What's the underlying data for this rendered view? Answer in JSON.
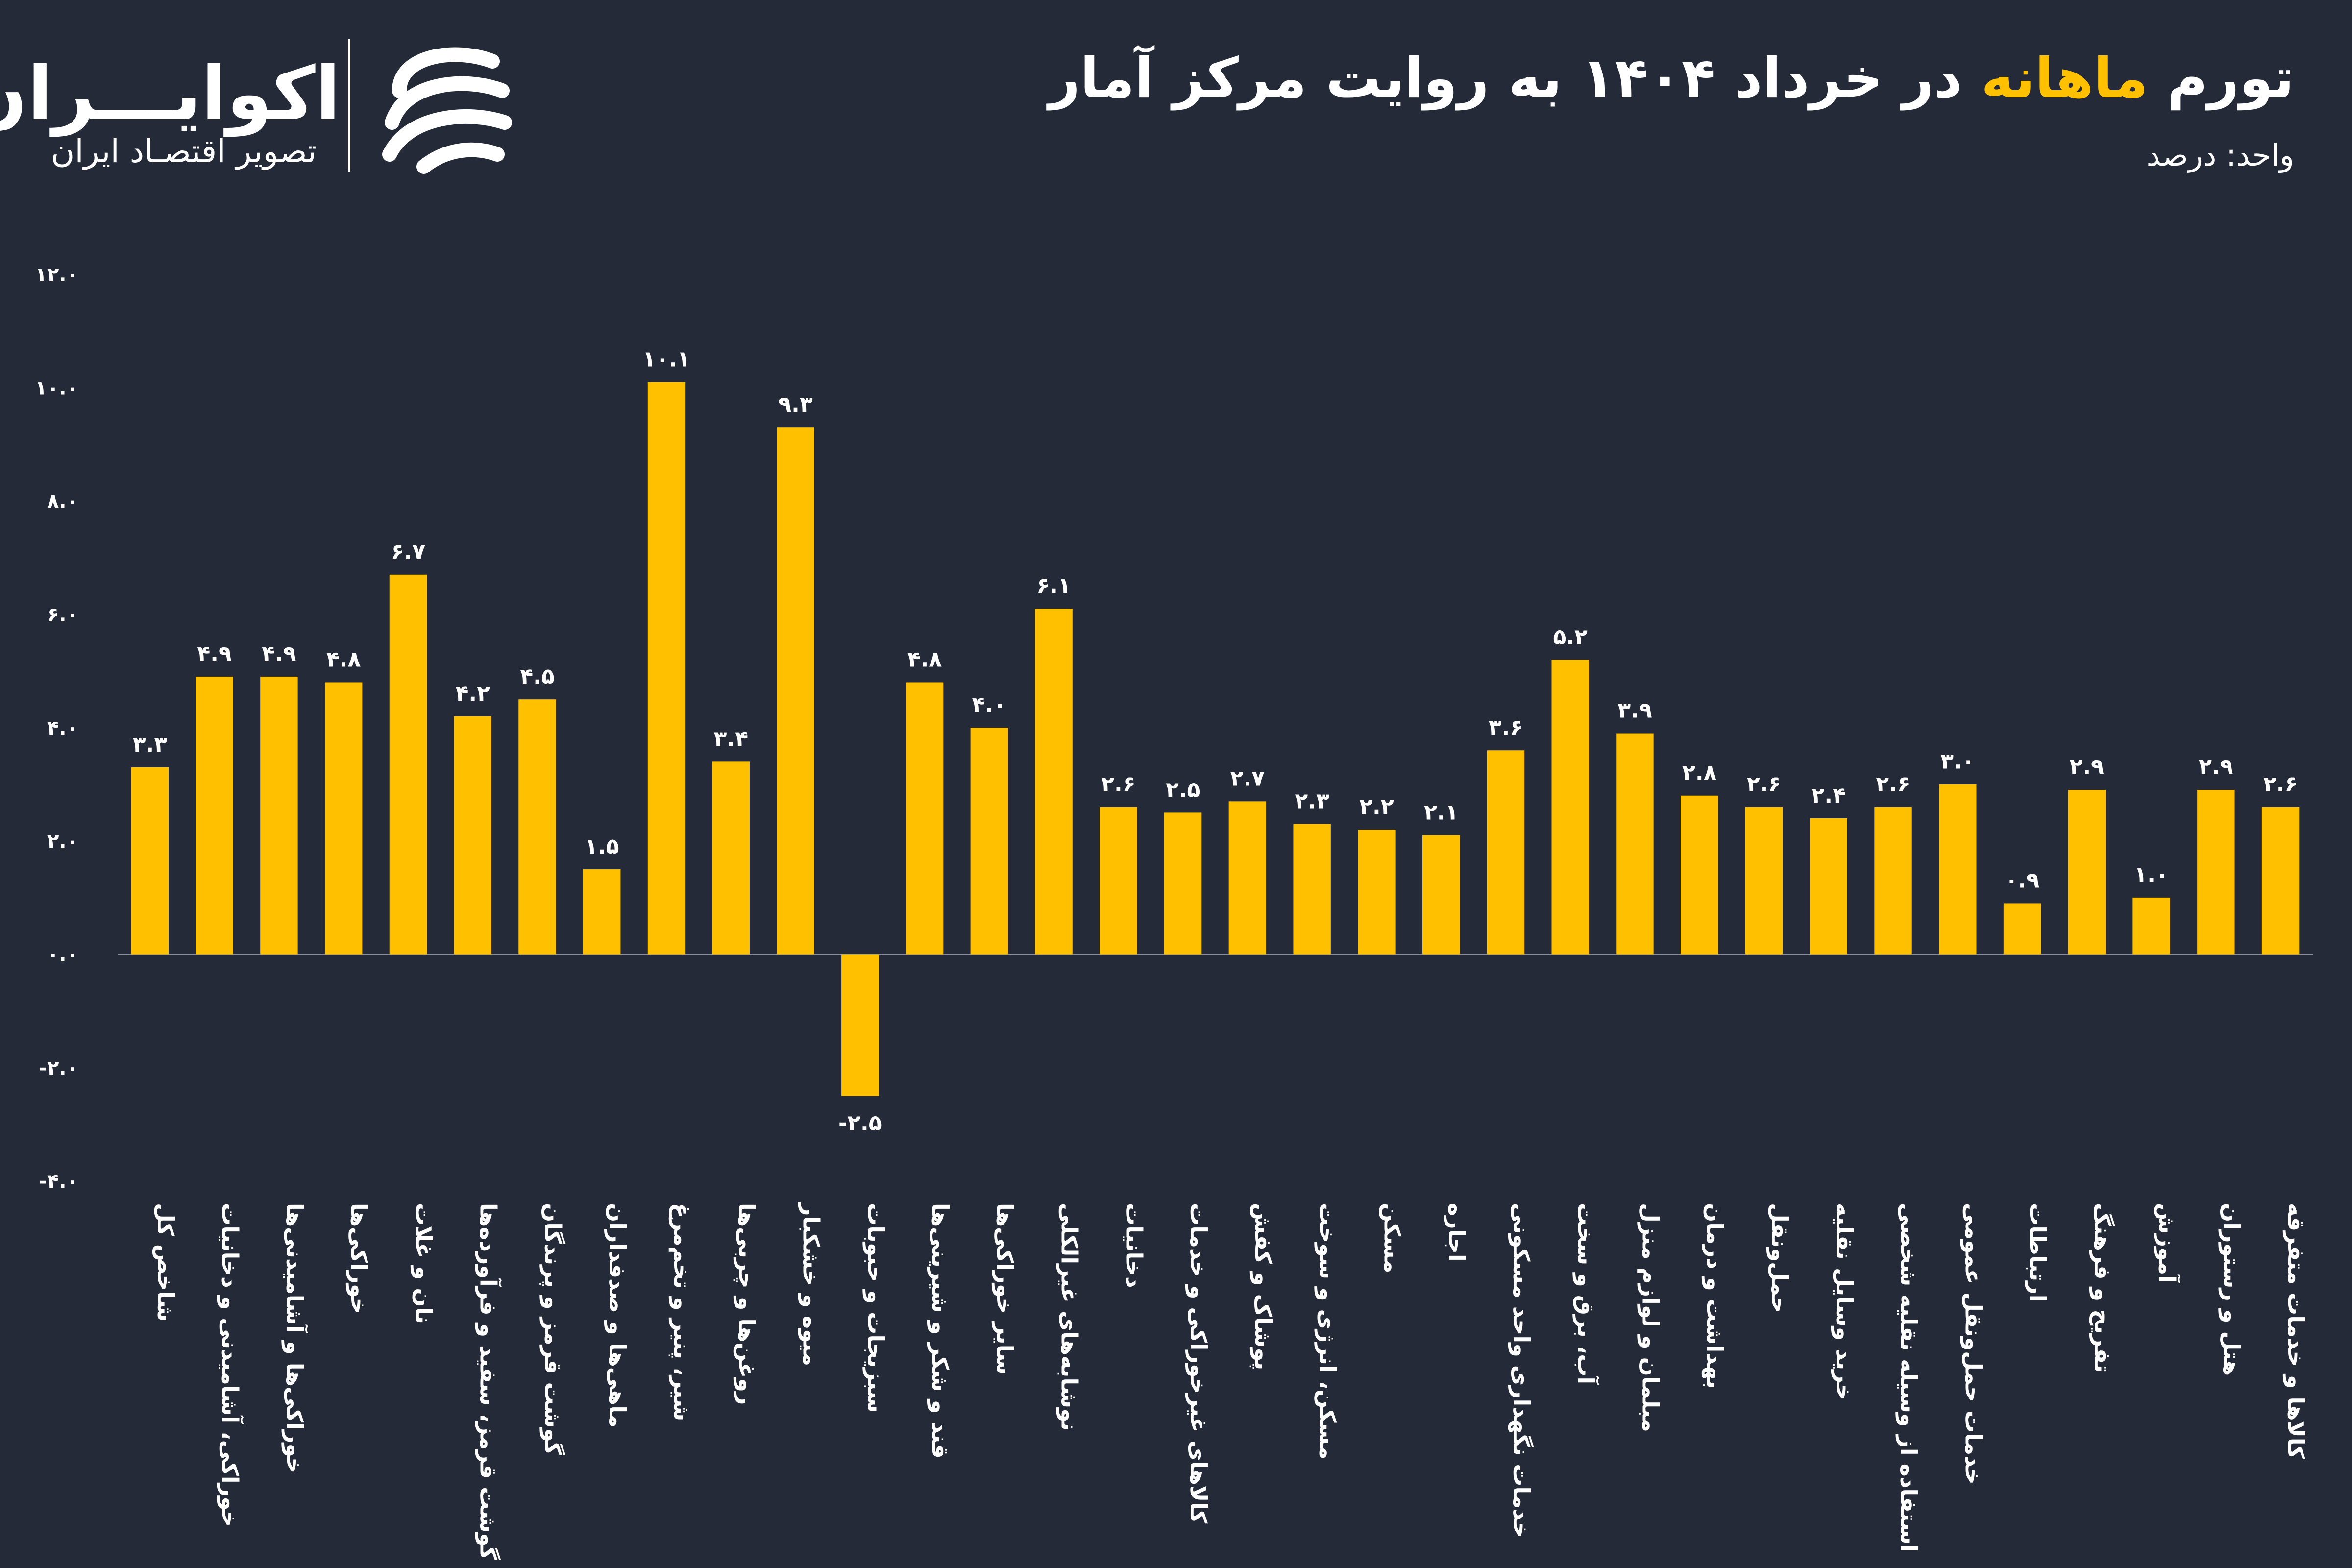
{
  "header": {
    "title_prefix": "تورم",
    "title_highlight": "ماهانه",
    "title_suffix": "در خرداد ۱۴۰۴ به روایت مرکز آمار",
    "unit_label": "واحد: درصد"
  },
  "logo": {
    "name": "اکوایـــران",
    "tagline": "تصویر اقتصـاد ایران"
  },
  "colors": {
    "background": "#252a38",
    "bar": "#ffc000",
    "text": "#ffffff",
    "baseline": "#8a8f9e"
  },
  "chart_data": {
    "type": "bar",
    "title": "تورم ماهانه در خرداد ۱۴۰۴ به روایت مرکز آمار",
    "ylabel": "واحد: درصد",
    "ylim": [
      -4,
      12
    ],
    "yticks": [
      -4,
      -2,
      0,
      2,
      4,
      6,
      8,
      10,
      12
    ],
    "ytick_labels": [
      "-۴.۰",
      "-۲.۰",
      "۰.۰",
      "۲.۰",
      "۴.۰",
      "۶.۰",
      "۸.۰",
      "۱۰.۰",
      "۱۲.۰"
    ],
    "grid": false,
    "categories": [
      "شاخص کل",
      "خوراکی، آشامیدنی و دخانیات",
      "خوراکی‌ها و آشامیدنی‌ها",
      "خوراکی‌ها",
      "نان و غلات",
      "گوشت قرمز، سفید و فرآورده‌ها",
      "گوشت قرمز و پرندگان",
      "ماهی‌ها و صدفداران",
      "شیر، پنیر و تخم‌مرغ",
      "روغن‌ها و چربی‌ها",
      "میوه و خشکبار",
      "سبزیجات و حبوبات",
      "قند و شکر و شیرینی‌ها",
      "سایر خوراکی‌ها",
      "نوشابه‌های غیرالکلی",
      "دخانیات",
      "کالاهای غیرخوراکی و خدمات",
      "پوشاک و کفش",
      "مسکن، انرژی و سوخت",
      "مسکن",
      "اجاره",
      "خدمات نگهداری واحد مسکونی",
      "آب، برق و سخت",
      "مبلمان و لوازم منزل",
      "بهداشت و درمان",
      "حمل‌ونقل",
      "خرید وسایل نقلیه",
      "استفاده از وسیله نقلیه شخصی",
      "خدمات حمل‌ونقل عمومی",
      "ارتباطات",
      "تفریح و فرهنگ",
      "آموزش",
      "هتل و رستوران",
      "کالاها و خدمات متفرقه"
    ],
    "values": [
      3.3,
      4.9,
      4.9,
      4.8,
      6.7,
      4.2,
      4.5,
      1.5,
      10.1,
      3.4,
      9.3,
      -2.5,
      4.8,
      4.0,
      6.1,
      2.6,
      2.5,
      2.7,
      2.3,
      2.2,
      2.1,
      3.6,
      5.2,
      3.9,
      2.8,
      2.6,
      2.4,
      2.6,
      3.0,
      0.9,
      2.9,
      1.0,
      2.9,
      2.6
    ],
    "value_labels": [
      "۳.۳",
      "۴.۹",
      "۴.۹",
      "۴.۸",
      "۶.۷",
      "۴.۲",
      "۴.۵",
      "۱.۵",
      "۱۰.۱",
      "۳.۴",
      "۹.۳",
      "-۲.۵",
      "۴.۸",
      "۴.۰",
      "۶.۱",
      "۲.۶",
      "۲.۵",
      "۲.۷",
      "۲.۳",
      "۲.۲",
      "۲.۱",
      "۳.۶",
      "۵.۲",
      "۳.۹",
      "۲.۸",
      "۲.۶",
      "۲.۴",
      "۲.۶",
      "۳.۰",
      "۰.۹",
      "۲.۹",
      "۱.۰",
      "۲.۹",
      "۲.۶"
    ]
  }
}
